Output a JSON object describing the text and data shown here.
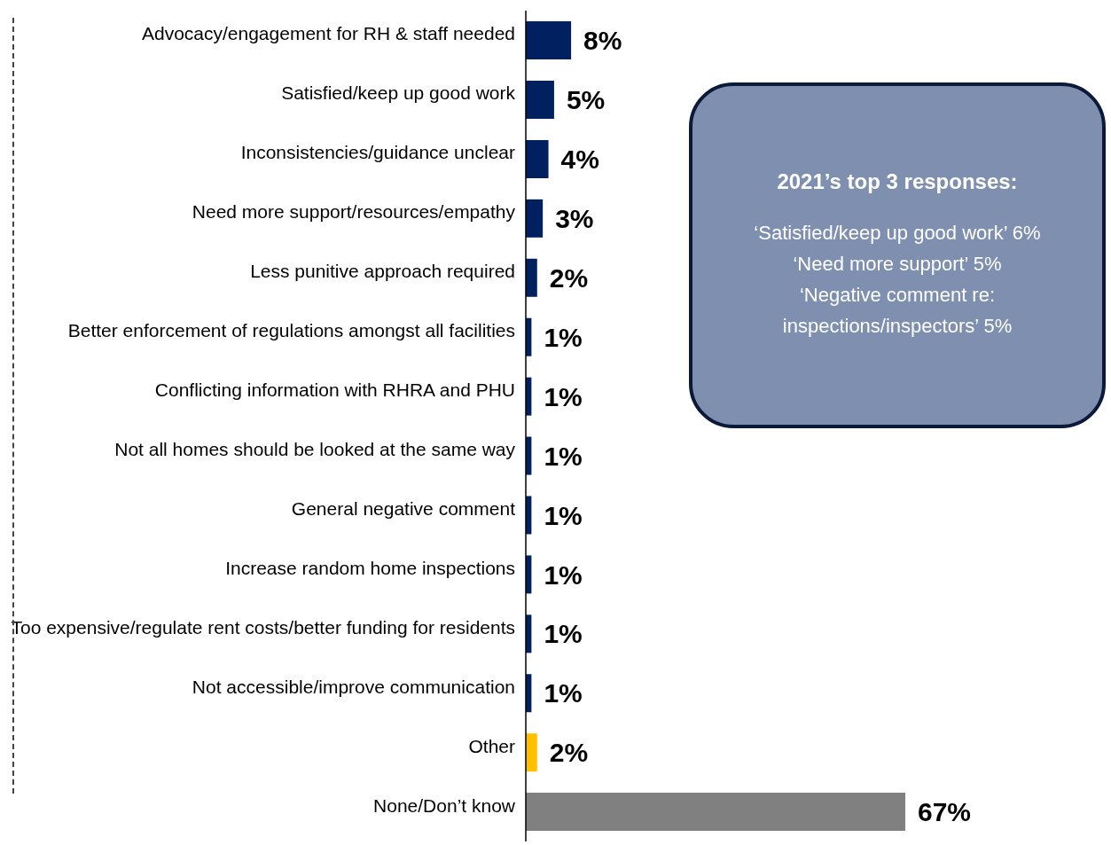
{
  "chart_data": {
    "type": "bar",
    "orientation": "horizontal",
    "value_labels": [
      "8%",
      "5%",
      "4%",
      "3%",
      "2%",
      "1%",
      "1%",
      "1%",
      "1%",
      "1%",
      "1%",
      "1%",
      "2%",
      "67%"
    ],
    "categories": [
      "Advocacy/engagement for RH & staff needed",
      "Satisfied/keep up good work",
      "Inconsistencies/guidance unclear",
      "Need more support/resources/empathy",
      "Less punitive approach required",
      "Better enforcement of regulations amongst all facilities",
      "Conflicting information with RHRA and PHU",
      "Not all homes should be looked at the same way",
      "General negative comment",
      "Increase random home inspections",
      "Too expensive/regulate rent costs/better funding for residents",
      "Not accessible/improve communication",
      "Other",
      "None/Don’t know"
    ],
    "values": [
      8,
      5,
      4,
      3,
      2,
      1,
      1,
      1,
      1,
      1,
      1,
      1,
      2,
      67
    ],
    "colors": [
      "#002060",
      "#002060",
      "#002060",
      "#002060",
      "#002060",
      "#002060",
      "#002060",
      "#002060",
      "#002060",
      "#002060",
      "#002060",
      "#002060",
      "#ffc000",
      "#808080"
    ],
    "annotations": [
      "2021’s top 3 responses:",
      "‘Satisfied/keep up good work’ 6%",
      "‘Need more support’ 5%",
      "‘Negative comment re: inspections/inspectors’ 5%"
    ]
  }
}
